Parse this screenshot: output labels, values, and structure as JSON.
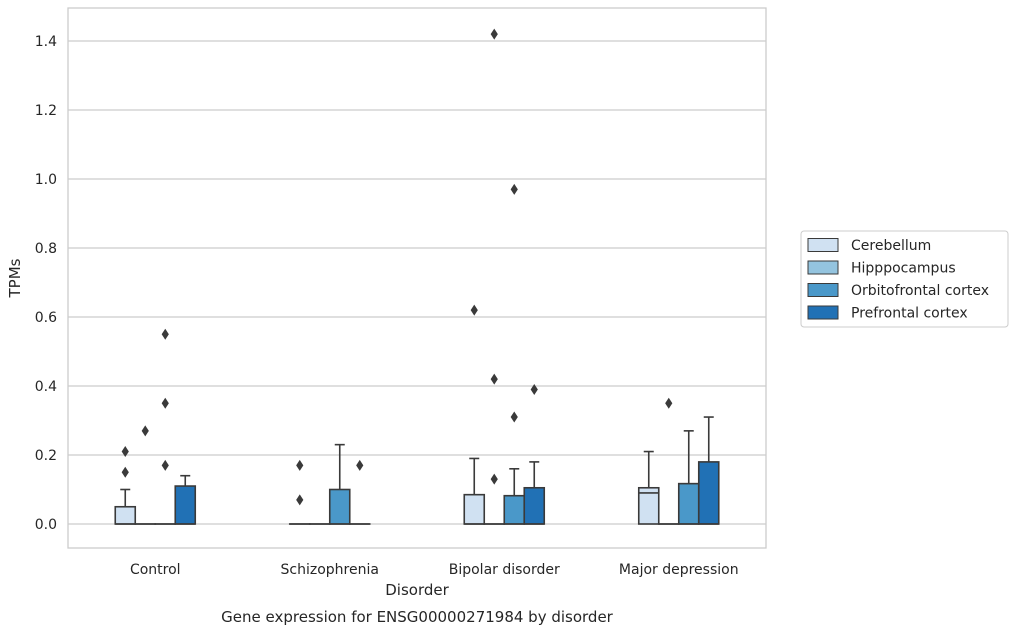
{
  "chart_data": {
    "type": "box",
    "caption": "Gene expression for ENSG00000271984 by disorder",
    "xlabel": "Disorder",
    "ylabel": "TPMs",
    "ylim": [
      -0.07,
      1.49
    ],
    "yticks": [
      0.0,
      0.2,
      0.4,
      0.6,
      0.8,
      1.0,
      1.2,
      1.4
    ],
    "ytick_labels": [
      "0.0",
      "0.2",
      "0.4",
      "0.6",
      "0.8",
      "1.0",
      "1.2",
      "1.4"
    ],
    "grid": true,
    "legend_position": "right",
    "categories": [
      "Control",
      "Schizophrenia",
      "Bipolar disorder",
      "Major depression"
    ],
    "series": [
      {
        "name": "Cerebellum",
        "color": "#d0e1f2",
        "boxes": [
          {
            "q1": 0.0,
            "median": 0.0,
            "q3": 0.05,
            "whisker_low": 0.0,
            "whisker_high": 0.1,
            "outliers": [
              0.15,
              0.21
            ]
          },
          {
            "q1": 0.0,
            "median": 0.0,
            "q3": 0.0,
            "whisker_low": 0.0,
            "whisker_high": 0.0,
            "outliers": [
              0.07,
              0.17
            ]
          },
          {
            "q1": 0.0,
            "median": 0.0,
            "q3": 0.085,
            "whisker_low": 0.0,
            "whisker_high": 0.19,
            "outliers": [
              0.62
            ]
          },
          {
            "q1": 0.0,
            "median": 0.09,
            "q3": 0.105,
            "whisker_low": 0.0,
            "whisker_high": 0.21,
            "outliers": []
          }
        ]
      },
      {
        "name": "Hipppocampus",
        "color": "#94c4df",
        "boxes": [
          {
            "q1": 0.0,
            "median": 0.0,
            "q3": 0.0,
            "whisker_low": 0.0,
            "whisker_high": 0.0,
            "outliers": [
              0.27
            ]
          },
          {
            "q1": 0.0,
            "median": 0.0,
            "q3": 0.0,
            "whisker_low": 0.0,
            "whisker_high": 0.0,
            "outliers": []
          },
          {
            "q1": 0.0,
            "median": 0.0,
            "q3": 0.0,
            "whisker_low": 0.0,
            "whisker_high": 0.0,
            "outliers": [
              0.13,
              0.42,
              1.42
            ]
          },
          {
            "q1": 0.0,
            "median": 0.0,
            "q3": 0.0,
            "whisker_low": 0.0,
            "whisker_high": 0.0,
            "outliers": [
              0.35
            ]
          }
        ]
      },
      {
        "name": "Orbitofrontal cortex",
        "color": "#4a98c9",
        "boxes": [
          {
            "q1": 0.0,
            "median": 0.0,
            "q3": 0.0,
            "whisker_low": 0.0,
            "whisker_high": 0.0,
            "outliers": [
              0.17,
              0.35,
              0.55
            ]
          },
          {
            "q1": 0.0,
            "median": 0.0,
            "q3": 0.1,
            "whisker_low": 0.0,
            "whisker_high": 0.23,
            "outliers": []
          },
          {
            "q1": 0.0,
            "median": 0.0,
            "q3": 0.082,
            "whisker_low": 0.0,
            "whisker_high": 0.16,
            "outliers": [
              0.31,
              0.97
            ]
          },
          {
            "q1": 0.0,
            "median": 0.0,
            "q3": 0.117,
            "whisker_low": 0.0,
            "whisker_high": 0.27,
            "outliers": []
          }
        ]
      },
      {
        "name": "Prefrontal cortex",
        "color": "#2171b5",
        "boxes": [
          {
            "q1": 0.0,
            "median": 0.0,
            "q3": 0.11,
            "whisker_low": 0.0,
            "whisker_high": 0.14,
            "outliers": []
          },
          {
            "q1": 0.0,
            "median": 0.0,
            "q3": 0.0,
            "whisker_low": 0.0,
            "whisker_high": 0.0,
            "outliers": [
              0.17
            ]
          },
          {
            "q1": 0.0,
            "median": 0.0,
            "q3": 0.105,
            "whisker_low": 0.0,
            "whisker_high": 0.18,
            "outliers": [
              0.39
            ]
          },
          {
            "q1": 0.0,
            "median": 0.0,
            "q3": 0.18,
            "whisker_low": 0.0,
            "whisker_high": 0.31,
            "outliers": []
          }
        ]
      }
    ]
  }
}
